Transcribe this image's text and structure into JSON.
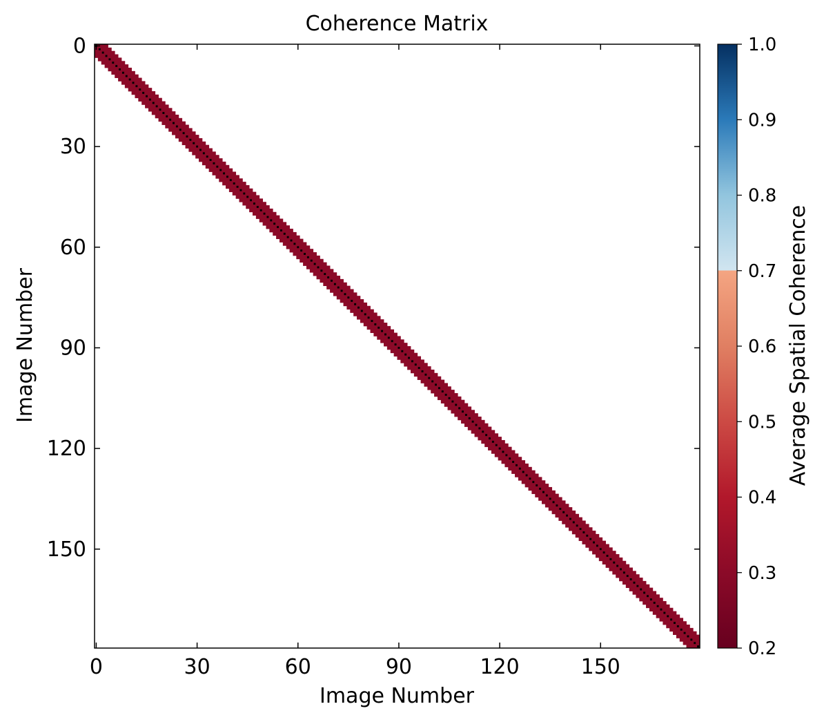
{
  "chart_data": {
    "type": "heatmap",
    "title": "Coherence Matrix",
    "xlabel": "Image Number",
    "ylabel": "Image Number",
    "n_images": 180,
    "xlim": [
      0,
      179
    ],
    "ylim": [
      0,
      179
    ],
    "y_inverted": true,
    "x_ticks": [
      0,
      30,
      60,
      90,
      120,
      150
    ],
    "y_ticks": [
      0,
      30,
      60,
      90,
      120,
      150
    ],
    "x_tick_labels": [
      "0",
      "30",
      "60",
      "90",
      "120",
      "150"
    ],
    "y_tick_labels": [
      "0",
      "30",
      "60",
      "90",
      "120",
      "150"
    ],
    "band_half_width": 3,
    "diagonal_value": 1.0,
    "band_value": 0.3,
    "off_band": "blank",
    "colorbar": {
      "label": "Average Spatial Coherence",
      "range": [
        0.2,
        1.0
      ],
      "ticks": [
        0.2,
        0.3,
        0.4,
        0.5,
        0.6,
        0.7,
        0.8,
        0.9,
        1.0
      ],
      "tick_labels": [
        "0.2",
        "0.3",
        "0.4",
        "0.5",
        "0.6",
        "0.7",
        "0.8",
        "0.9",
        "1.0"
      ],
      "colors": [
        {
          "v": 0.2,
          "c": "#67001f"
        },
        {
          "v": 0.3,
          "c": "#8b0a28"
        },
        {
          "v": 0.4,
          "c": "#b2182b"
        },
        {
          "v": 0.5,
          "c": "#cc4a44"
        },
        {
          "v": 0.6,
          "c": "#e07f62"
        },
        {
          "v": 0.7,
          "c": "#f4a582"
        },
        {
          "v": 0.7001,
          "c": "#d1e5f0"
        },
        {
          "v": 0.8,
          "c": "#92c5de"
        },
        {
          "v": 0.9,
          "c": "#2b7ab9"
        },
        {
          "v": 1.0,
          "c": "#053061"
        }
      ],
      "placement": "right"
    },
    "diagonal_color": "#000000",
    "grid": false
  }
}
